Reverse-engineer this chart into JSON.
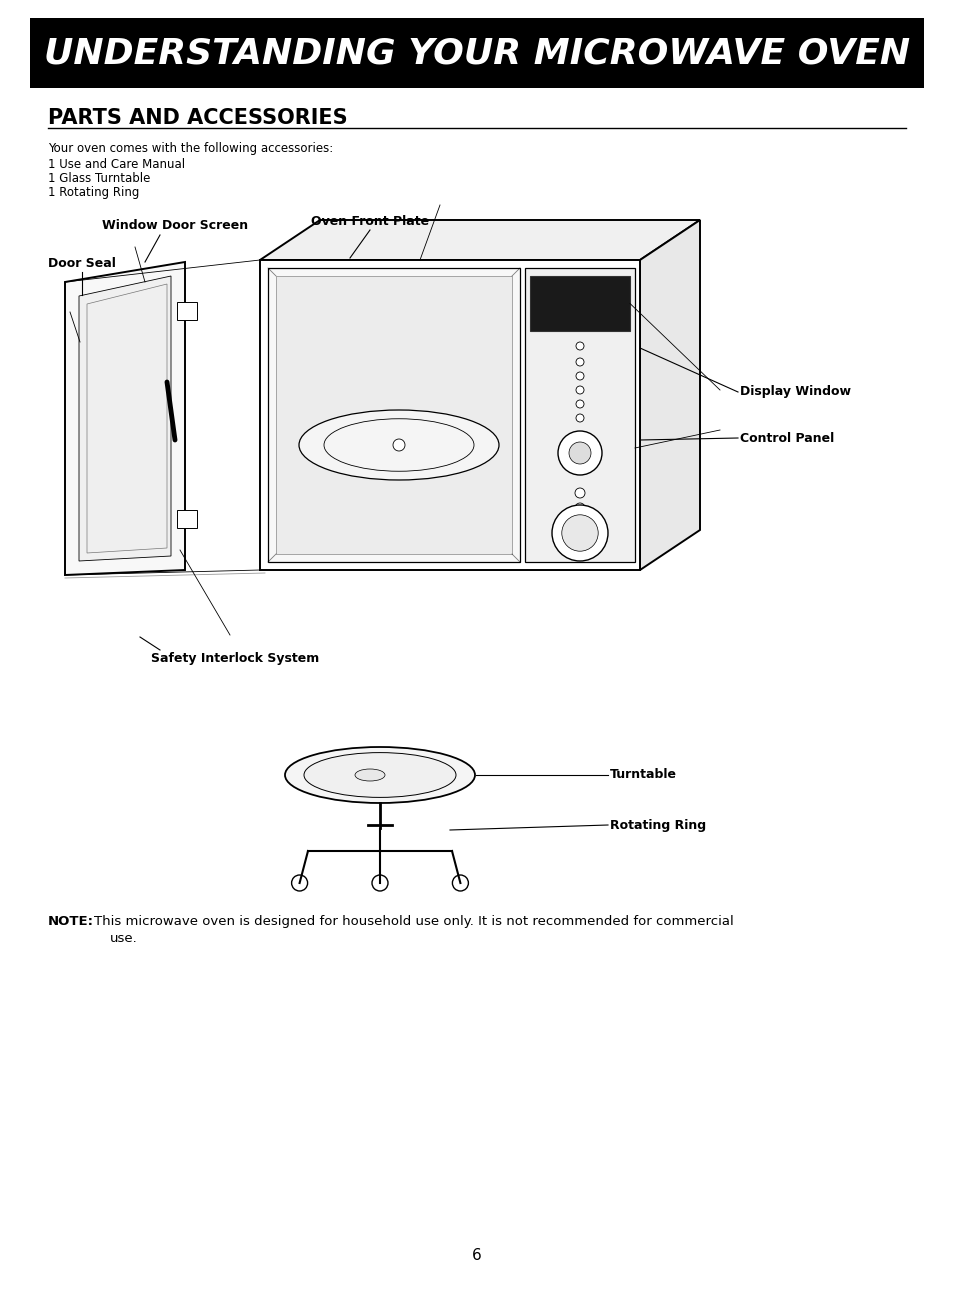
{
  "page_bg": "#ffffff",
  "header_bg": "#000000",
  "header_text": "UNDERSTANDING YOUR MICROWAVE OVEN",
  "header_text_color": "#ffffff",
  "header_font_size": 26,
  "section_title": "PARTS AND ACCESSORIES",
  "section_title_size": 15,
  "body_text_size": 8.5,
  "label_text_size": 9,
  "accessories_intro": "Your oven comes with the following accessories:",
  "accessories_list": [
    "1 Use and Care Manual",
    "1 Glass Turntable",
    "1 Rotating Ring"
  ],
  "note_bold": "NOTE:",
  "note_text": " This microwave oven is designed for household use only. It is not recommended for commercial\n      use.",
  "page_number": "6"
}
